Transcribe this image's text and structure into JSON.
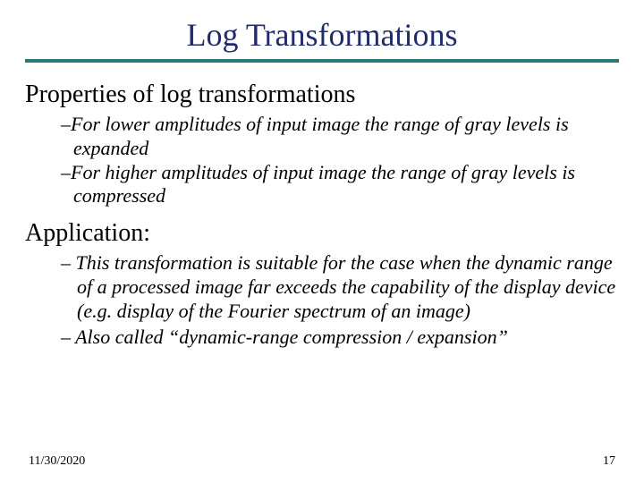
{
  "colors": {
    "title": "#1f2b6b",
    "rule": "#2b7a78",
    "text": "#000000",
    "background": "#ffffff"
  },
  "title": "Log Transformations",
  "section1": {
    "heading": "Properties of log transformations",
    "items": [
      "For lower amplitudes of input image the range of gray levels is expanded",
      "For higher amplitudes of input image the range of gray levels is compressed"
    ]
  },
  "section2": {
    "heading": "Application:",
    "items": [
      "This transformation is suitable for the case when the dynamic range of a processed image far exceeds the capability of the display device (e.g. display of the Fourier spectrum of an image)",
      "Also called “dynamic-range compression / expansion”"
    ]
  },
  "footer": {
    "date": "11/30/2020",
    "page": "17"
  },
  "typography": {
    "title_fontsize": 36,
    "heading_fontsize": 28,
    "body_fontsize": 22,
    "footer_fontsize": 14,
    "font_family": "Times New Roman"
  }
}
